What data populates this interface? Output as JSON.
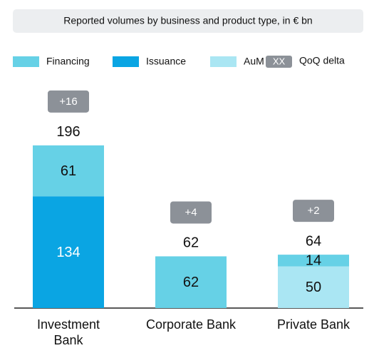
{
  "chart_data": {
    "type": "stacked_bar",
    "title": "Reported volumes by business and product type, in € bn",
    "categories": [
      "Investment Bank",
      "Corporate Bank",
      "Private Bank"
    ],
    "series": [
      {
        "name": "Financing",
        "color": "#66d1e6",
        "values": [
          61,
          62,
          14
        ]
      },
      {
        "name": "Issuance",
        "color": "#0aa5e3",
        "values": [
          134,
          null,
          null
        ]
      },
      {
        "name": "AuM",
        "color": "#aae6f3",
        "values": [
          null,
          null,
          50
        ]
      }
    ],
    "totals": [
      196,
      62,
      64
    ],
    "deltas": {
      "values": [
        16,
        4,
        2
      ],
      "value_labels": [
        "+16",
        "+4",
        "+2"
      ],
      "color": "#8c9198"
    },
    "delta_legend": {
      "sample": "XX",
      "label": "QoQ delta"
    },
    "ylim": [
      0,
      200
    ]
  }
}
